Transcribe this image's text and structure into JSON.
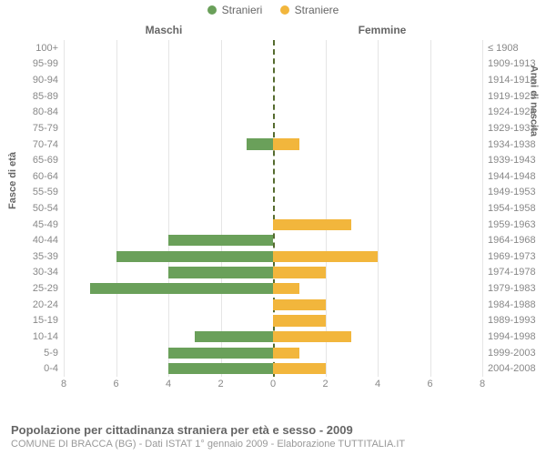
{
  "chart": {
    "type": "population-pyramid",
    "background_color": "#ffffff",
    "grid_color": "#e5e5e5",
    "center_line_color": "#556B2F",
    "text_color": "#888888",
    "legend": [
      {
        "label": "Stranieri",
        "color": "#6aa05a"
      },
      {
        "label": "Straniere",
        "color": "#f2b63c"
      }
    ],
    "column_titles": {
      "left": "Maschi",
      "right": "Femmine"
    },
    "y_axis_left_title": "Fasce di età",
    "y_axis_right_title": "Anni di nascita",
    "x_max": 8,
    "x_ticks": [
      8,
      6,
      4,
      2,
      0,
      2,
      4,
      6,
      8
    ],
    "age_groups": [
      {
        "age": "100+",
        "birth": "≤ 1908",
        "male": 0,
        "female": 0
      },
      {
        "age": "95-99",
        "birth": "1909-1913",
        "male": 0,
        "female": 0
      },
      {
        "age": "90-94",
        "birth": "1914-1918",
        "male": 0,
        "female": 0
      },
      {
        "age": "85-89",
        "birth": "1919-1923",
        "male": 0,
        "female": 0
      },
      {
        "age": "80-84",
        "birth": "1924-1928",
        "male": 0,
        "female": 0
      },
      {
        "age": "75-79",
        "birth": "1929-1933",
        "male": 0,
        "female": 0
      },
      {
        "age": "70-74",
        "birth": "1934-1938",
        "male": 1,
        "female": 1
      },
      {
        "age": "65-69",
        "birth": "1939-1943",
        "male": 0,
        "female": 0
      },
      {
        "age": "60-64",
        "birth": "1944-1948",
        "male": 0,
        "female": 0
      },
      {
        "age": "55-59",
        "birth": "1949-1953",
        "male": 0,
        "female": 0
      },
      {
        "age": "50-54",
        "birth": "1954-1958",
        "male": 0,
        "female": 0
      },
      {
        "age": "45-49",
        "birth": "1959-1963",
        "male": 0,
        "female": 3
      },
      {
        "age": "40-44",
        "birth": "1964-1968",
        "male": 4,
        "female": 0
      },
      {
        "age": "35-39",
        "birth": "1969-1973",
        "male": 6,
        "female": 4
      },
      {
        "age": "30-34",
        "birth": "1974-1978",
        "male": 4,
        "female": 2
      },
      {
        "age": "25-29",
        "birth": "1979-1983",
        "male": 7,
        "female": 1
      },
      {
        "age": "20-24",
        "birth": "1984-1988",
        "male": 0,
        "female": 2
      },
      {
        "age": "15-19",
        "birth": "1989-1993",
        "male": 0,
        "female": 2
      },
      {
        "age": "10-14",
        "birth": "1994-1998",
        "male": 3,
        "female": 3
      },
      {
        "age": "5-9",
        "birth": "1999-2003",
        "male": 4,
        "female": 1
      },
      {
        "age": "0-4",
        "birth": "2004-2008",
        "male": 4,
        "female": 2
      }
    ],
    "footer_title": "Popolazione per cittadinanza straniera per età e sesso - 2009",
    "footer_subtitle": "COMUNE DI BRACCA (BG) - Dati ISTAT 1° gennaio 2009 - Elaborazione TUTTITALIA.IT"
  }
}
